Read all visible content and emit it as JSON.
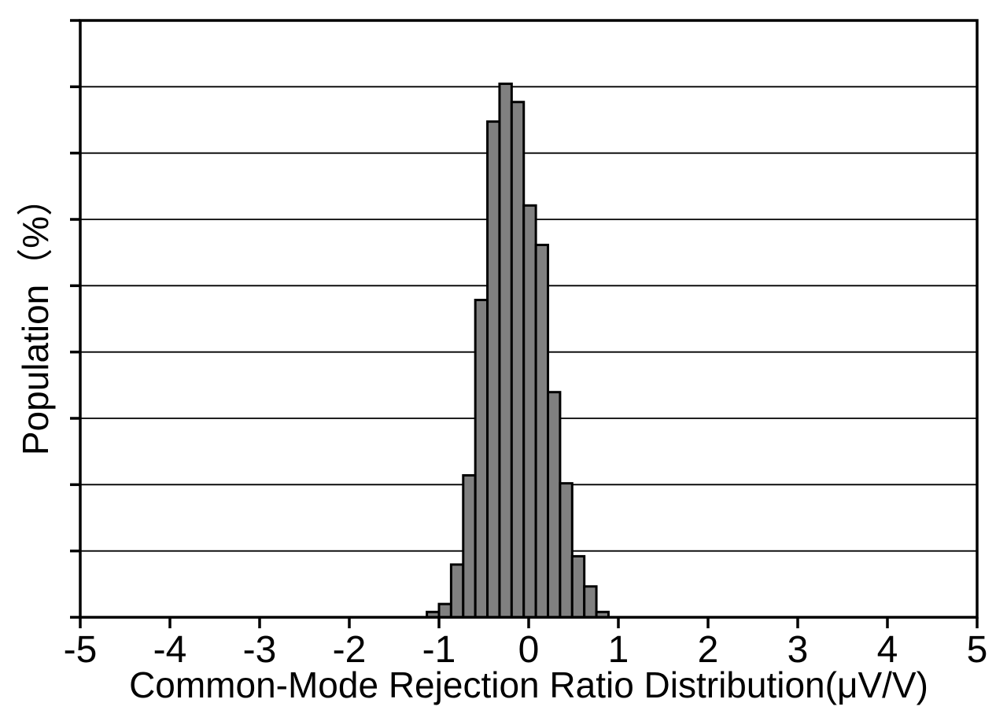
{
  "chart_data": {
    "type": "bar",
    "subtype": "histogram",
    "title": "",
    "xlabel": "Common-Mode Rejection Ratio Distribution(μV/V)",
    "ylabel": "Population（%）",
    "xlim": [
      -5,
      5
    ],
    "ylim": [
      0,
      18
    ],
    "x_tick_labels": [
      "-5",
      "-4",
      "-3",
      "-2",
      "-1",
      "0",
      "1",
      "2",
      "3",
      "4",
      "5"
    ],
    "x_tick_values": [
      -5,
      -4,
      -3,
      -2,
      -1,
      0,
      1,
      2,
      3,
      4,
      5
    ],
    "y_tick_step": 2,
    "y_tick_labels_visible": false,
    "grid": "horizontal",
    "legend": "none",
    "bin_edges": [
      -1.135,
      -1.0,
      -0.865,
      -0.73,
      -0.595,
      -0.46,
      -0.325,
      -0.19,
      -0.055,
      0.08,
      0.215,
      0.35,
      0.485,
      0.62,
      0.755,
      0.89
    ],
    "values_percent": [
      0.16,
      0.4,
      1.59,
      4.28,
      9.57,
      14.95,
      16.09,
      15.54,
      12.42,
      11.23,
      6.79,
      4.04,
      1.84,
      0.93,
      0.16
    ],
    "colors": {
      "bar_fill": "#808080",
      "bar_edge": "#000000",
      "axis": "#000000",
      "grid": "#000000",
      "text": "#000000",
      "background": "#ffffff"
    }
  }
}
